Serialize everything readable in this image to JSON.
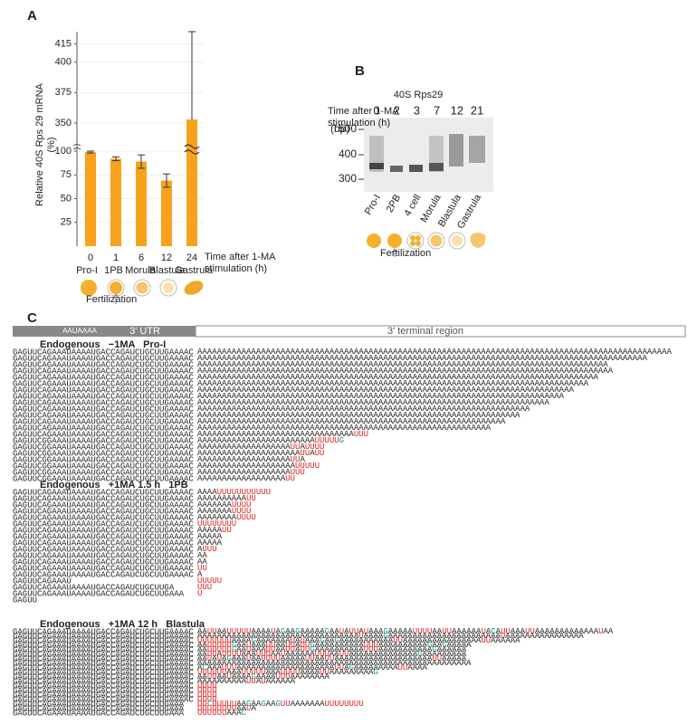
{
  "panel_labels": [
    "A",
    "B",
    "C"
  ],
  "chart_data": {
    "type": "bar",
    "ylabel": [
      "Relative 40S Rps 29 mRNA",
      "(%)"
    ],
    "xlabel": [
      "Time after 1-MA",
      "stimulation (h)"
    ],
    "categories": [
      "0",
      "1",
      "6",
      "12",
      "24"
    ],
    "stages": [
      "Pro-I",
      "1PB",
      "Morula",
      "Blastula",
      "Gastrula"
    ],
    "values": [
      99,
      92,
      89,
      69,
      353
    ],
    "errors": [
      1,
      2,
      7,
      7,
      72
    ],
    "color": "#f7a21b",
    "ylim": [
      0,
      425
    ],
    "axis_break": [
      100,
      350
    ],
    "yticks": [
      25,
      50,
      75,
      100,
      350,
      375,
      400,
      415
    ],
    "grid": true,
    "annotation": "Fertilization"
  },
  "gel": {
    "title": "40S Rps29",
    "axis_label": [
      "Time after 1-MA",
      "stimulation (h)"
    ],
    "lanes": [
      "0",
      "2",
      "3",
      "7",
      "12",
      "21"
    ],
    "size_unit": "(bp)",
    "sizes": [
      "500",
      "400",
      "300"
    ],
    "stages": [
      "Pro-I",
      "2PB",
      "4 cell",
      "Morula",
      "Blastula",
      "Gastrula"
    ],
    "annotation": "Fertilization"
  },
  "sequences": {
    "header": {
      "signal": "AAUAAAA",
      "utr": "3′ UTR",
      "terminal": "3′ terminal region"
    },
    "groups": [
      {
        "title": "Endogenous   −1MA   Pro-I",
        "lines": [
          {
            "prefix": "GAGUUCAGAAAUAAAAUGACCAGAUCUGCUUGAAAAC",
            "tail": "AAAAAAAAAAAAAAAAAAAAAAAAAAAAAAAAAAAAAAAAAAAAAAAAAAAAAAAAAAAAAAAAAAAAAAAAAAAAAAAAAAAAAAAAAAAAAAAAA"
          },
          {
            "prefix": "GAGUUCAGAAAUAAAAUGACCAGAUCUGCUUGAAAAC",
            "tail": "AAAAAAAAAAAAAAAAAAAAAAAAAAAAAAAAAAAAAAAAAAAAAAAAAAAAAAAAAAAAAAAAAAAAAAAAAAAAAAAAAAAAAAAAAAAA"
          },
          {
            "prefix": "GAGUUCAGAAAUAAAAUGACCAGAUCUGCUUGAAAAC",
            "tail": "AAAAAAAAAAAAAAAAAAAAAAAAAAAAAAAAAAAAAAAAAAAAAAAAAAAAAAAAAAAAAAAAAAAAAAAAAAAAAAAAAAAA"
          },
          {
            "prefix": "GAGUUCAGAAAUAAAAUGACCAGAUCUGCUUGAAAAC",
            "tail": "AAAAAAAAAAAAAAAAAAAAAAAAAAAAAAAAAAAAAAAAAAAAAAAAAAAAAAAAAAAAAAAAAAAAAAAAAAAAAAAAAAAAA"
          },
          {
            "prefix": "GAGUUCAGAAAUAAAAUGACCAGAUCUGCUUGAAAAC",
            "tail": "AAAAAAAAAAAAAAAAAAAAAAAAAAAAAAAAAAAAAAAAAAAAAAAAAAAAAAAAAAAAAAAAAAAAAAAAAAAAAAAAAA"
          },
          {
            "prefix": "GAGUUCAGAAAUAAAAUGACCAGAUCUGCUUGAAAAC",
            "tail": "AAAAAAAAAAAAAAAAAAAAAAAAAAAAAAAAAAAAAAAAAAAAAAAAAAAAAAAAAAAAAAAAAAAAAAAAAAAAAAAA"
          },
          {
            "prefix": "GAGUUCAGAAAUAAAAUGACCAGAUCUGCUUGAAAAC",
            "tail": "AAAAAAAAAAAAAAAAAAAAAAAAAAAAAAAAAAAAAAAAAAAAAAAAAAAAAAAAAAAAAAAAAAAAAAAAAAAAA"
          },
          {
            "prefix": "GAGUUCAGAAAUAAAAUGACCAGAUCUGCUUGAAAAC",
            "tail": "AAAAAAAAAAAAAAAAAAAAAAAAAAAAAAAAAAAAAAAAAAAAAAAAAAAAAAAAAAAAAAAAAAAAAAAAAAA"
          },
          {
            "prefix": "GAGUUCAGAAAUAAAAUGACCAGAUCUGCUUGAAAAC",
            "tail": "AAAAAAAAAAAAAAAAAAAAAAAAAAAAAAAAAAAAAAAAAAAAAAAAAAAAAAAAAAAAAAAAAAAAAAAA"
          },
          {
            "prefix": "GAGUUCAGAAAUAAAAUGACCAGAUCUGCUUGAAAAC",
            "tail": "AAAAAAAAAAAAAAAAAAAAAAAAAAAAAAAAAAAAAAAAAAAAAAAAAAAAAAAAAAAAAAAAAAAA"
          },
          {
            "prefix": "GAGUUCAGAAAUAAAAUGACCAGAUCUGCUUGAAAAC",
            "tail": "AAAAAAAAAAAAAAAAAAAAAAAAAAAAAAAAAAAAAAAAAAAAAAAAAAAAAAAAAAAAAAAAAA"
          },
          {
            "prefix": "GAGUUCAGAAAUAAAAUGACCAGAUCUGCUUGAAAAC",
            "tail": "AAAAAAAAAAAAAAAAAAAAAAAAAAAAAAAAAAAAAAAAAAAAAAAAAAAAAAAAAAAAAAA"
          },
          {
            "prefix": "GAGUUCAGAAAUAAAAUGACCAGAUCUGCUUGAAAAC",
            "tail": "AAAAAAAAAAAAAAAAAAAAAAAAAAAAAAAAAAAAAAAAAAAAAAAAAAAAAAAAAAAA"
          },
          {
            "prefix": "GAGUUCAGAAAUAAAAUGACCAGAUCUGCUUGAAAAC",
            "tail": "AAAAAAAAAAAAAAAAAAAAAAAAAAAAAAAAUUU"
          },
          {
            "prefix": "GAGUUCGGAAAUAAAAUGACCAGAUCUGCUUGAAAAC",
            "tail": "AAAAAAAAAAAAAAAAAAAAAAAAUUUUUG"
          },
          {
            "prefix": "GAGUUCGGAAAUAAAAUGACCAGAUCUGCUUGAAAAC",
            "tail": "AAAAAAAAAAAAAAAAAAAUUAUUUU"
          },
          {
            "prefix": "GAGUUCGGAAAUAAAAUGACCAGAUCUGCUUGAAAAC",
            "tail": "AAAAAAAAAAAAAAAAAAAAAUUAUU"
          },
          {
            "prefix": "GAGUUCGGAAAUAAAAUGACCAGAUCUGCUUGAAAAC",
            "tail": "AAAAAAAAAAAAAAAAAAAUUA"
          },
          {
            "prefix": "GAGUUCGGAAAUAAAAUGACCAGAUCUGCUUGAAAAC",
            "tail": "AAAAAAAAAAAAAAAAAAAAUUUUU"
          },
          {
            "prefix": "GAGUUCGGAAAUAAAAUGACCAGAUCUGCUUGAAAAC",
            "tail": "AAAAAAAAAAAAAAAAAAAUUU"
          },
          {
            "prefix": "GAGUUCGGAAAUAAAAUGACCAGAUCUGCUUGAAAAC",
            "tail": "AAAAAAAAAAAAAAAAAAUU"
          }
        ]
      },
      {
        "title": "Endogenous   +1MA 1.5 h   1PB",
        "lines": [
          {
            "prefix": "GAGUUCAGAAAUAAAAUGACCAGAUCUGCUUGAAAAC",
            "tail": "AAAAUUUUUUUUUUU"
          },
          {
            "prefix": "GAGUUCAGAAAUAAAAUGACCAGAUCUGCUUGAAAAC",
            "tail": "AAAAAAAAAAUU"
          },
          {
            "prefix": "GAGUUCAGAAAUAAAAUGACCAGAUCUGCUUGAAAAC",
            "tail": "AAAAAAAUUUU"
          },
          {
            "prefix": "GAGUUCAGAAAUAAAAUGACCAGAUCUGCUUGAAAAC",
            "tail": "AAAAAAAUUUU"
          },
          {
            "prefix": "GAGUUCAGAAAUAAAAUGACCAGAUCUGCUUGAAAAC",
            "tail": "AAAAAAAAUUUU"
          },
          {
            "prefix": "GAGUUCAGAAAUAAAAUGACCAGAUCUGCUUGAAAAC",
            "tail": "UUUUUUUU"
          },
          {
            "prefix": "GAGUUCAGAAAUAAAAUGACCAGAUCUGCUUGAAAAC",
            "tail": "AAAAAUU"
          },
          {
            "prefix": "GAGUUCAGAAAUAAAAUGACCAGAUCUGCUUGAAAAC",
            "tail": "AAAAA"
          },
          {
            "prefix": "GAGUUCAGAAAUAAAAUGACCAGAUCUGCUUGAAAAC",
            "tail": "AAAAA"
          },
          {
            "prefix": "GAGUUCAGAAAUAAAAUGACCAGAUCUGCUUGAAAAC",
            "tail": "AUUU"
          },
          {
            "prefix": "GAGUUCAGAAAUAAAAUGACCAGAUCUGCUUGAAAAC",
            "tail": "AA"
          },
          {
            "prefix": "GAGUUCAGAAAUAAAAUGACCAGAUCUGCUUGAAAAC",
            "tail": "AA"
          },
          {
            "prefix": "GAGUUCAGAAAUAAAAUGACCAGAUCUGCUUGAAAAC",
            "tail": "UU"
          },
          {
            "prefix": "GAGUUCAGAAAUAAAAUGACCAGAUCUGCUUGAAAAC",
            "tail": "A"
          },
          {
            "prefix": "GAGUUCAGAAAU",
            "tail": "UUUUU"
          },
          {
            "prefix": "GAGUUCAGAAAUAAAAUGACCAGAUCUGCUUGA",
            "tail": "UUU"
          },
          {
            "prefix": "GAGUUCAGAAAUAAAAUGACCAGAUCUGCUUGAAA",
            "tail": "U"
          },
          {
            "prefix": "GAGUU",
            "tail": ""
          }
        ]
      },
      {
        "title": "Endogenous   +1MA 12 h   Blastula",
        "lines": [
          {
            "prefix": "GAGUUCAGAAAUAAAAUGACCAGAUCUGCUUGAAAAC",
            "tail": "AAUUAAUUUUUAAAAUAGAAGAAAAAGAAUAUUAUAAAGAAAAAUUUUAAUUAAAAAAUACAUUAAAUUAAAAAAAAAAAAAUAA"
          },
          {
            "prefix": "GAGUUCAGAAAUAAAAUGACCAGAUCUGCUUGAAAAC",
            "tail": "AAAAAAAAAAAAAAAAAAAAAAAAAAAAAAAAAUAAAAGAAAAAAAAAAAAAAAAAAAAAAAUAAAAAAAAAAAAAAAA"
          },
          {
            "prefix": "GAGUUCAGAAAUAAAAUGACCAGAUCUGCUUGAAAAC",
            "tail": "UUUUUUUAAAAGAAAAAAAUAUAAAGAAGAAAAAAAAAAAUUAAAAAAAAAAAAAAAAUUAAAAAA"
          },
          {
            "prefix": "GAGUUCAGAAAUAAAAUGACCAGAUCUGCUUGAAAAC",
            "tail": "AAUUUUUGAAUAAAUUAAUUAUUGAAAAAAAAAAUUUAAAAAAAAAAGAAGAAAAA"
          },
          {
            "prefix": "GAGUUCAGAAAUAAAAUGACCAGAUCUGCUUGAAAAC",
            "tail": "AAUUUUUGAAUAAAUUAAUUAUUGAAAAAAAAAAUUUAAAAAAAAAAAGAAAAAA"
          },
          {
            "prefix": "GAGUUCAGAAAUAAAAUGACCAGAUCUGCUUGAAAAC",
            "tail": "AAUUAUUUUAAAUUUAAUAAAAAAUUUAAUUAAAAAAAAAAAAAAGAAAAAAAAA"
          },
          {
            "prefix": "GAGUUCAGAAAUAAAAUGACCAGAUCUGCUUGAAAAC",
            "tail": "AAUAUAGAAAUAAUUUUAAAAAUUAAUUAAAAAAAAAAAAAAAAAAAAUUAAAAA"
          },
          {
            "prefix": "GAGUUCAGAAAUAAAAUGACCAGAUCUGCUUGAAAAC",
            "tail": "AAAAAAAAAAAAAAAAAAAAAAAAAAAAAAAAAAAAAAAAAAAAAAAAAAAAAAAA"
          },
          {
            "prefix": "GAGUUCAGAAAUAAAAUGACCAGAUCUGCUUGAAAAC",
            "tail": "ACAAAUUUAAAAAAAAAAAAAAAAAAAAUUAGAAAAAAAAAUUAAAA"
          },
          {
            "prefix": "GAGUUCAGAAAUAAAAUGACCAGAUCUGCUUGAAAAC",
            "tail": "UUUUUUAAAUUUUUAAAUUUUAAAAUUAAAAAAAAAG"
          },
          {
            "prefix": "GAGUUCAGAAAUAAAAUGACCAGAUCUGCUUGAAAAC",
            "tail": "AAUUAAUAAAAGAAAAUUUAAAAAAAA"
          },
          {
            "prefix": "GAGUUCAGAAAUAAAAUGACCAGAUCUGCUUGAAAAC",
            "tail": "AAAAAAAAAAUUAUAAAAAA"
          },
          {
            "prefix": "GAGUUCAGAAAUAAAAUGACCAGAUCUGCUUGAAAAC",
            "tail": "UUUU"
          },
          {
            "prefix": "GAGUUCAGAAAUAAAAUGACCAGAUCUGCUUGAAAAC",
            "tail": "UUUU"
          },
          {
            "prefix": "GAGUUCAGAAAUAAAAUGACCAGAUCUGCUUGAAAAC",
            "tail": "UUUU"
          },
          {
            "prefix": "GAGUUCAGAAAUAAAAUGACCAGAUCUGCUUGAAAAC",
            "tail": "UUUU"
          },
          {
            "prefix": "GAGUUCAGAAAUAAAAUGACCAGAUCUGCUUGAAA",
            "tail": "UUCUUUUUAAGAAGAAGUUAAAAAAAUUUUUUUU"
          },
          {
            "prefix": "GAGUUCAGAAAUAAAAUGACCAGAUCUGCUUGAAA",
            "tail": "UUUUUUUUAAUA"
          },
          {
            "prefix": "GAGUUCAGAAAUAAAAUGACCAGAUCUGCUUGAAA",
            "tail": "UUUUUUAAAC"
          }
        ]
      }
    ]
  }
}
